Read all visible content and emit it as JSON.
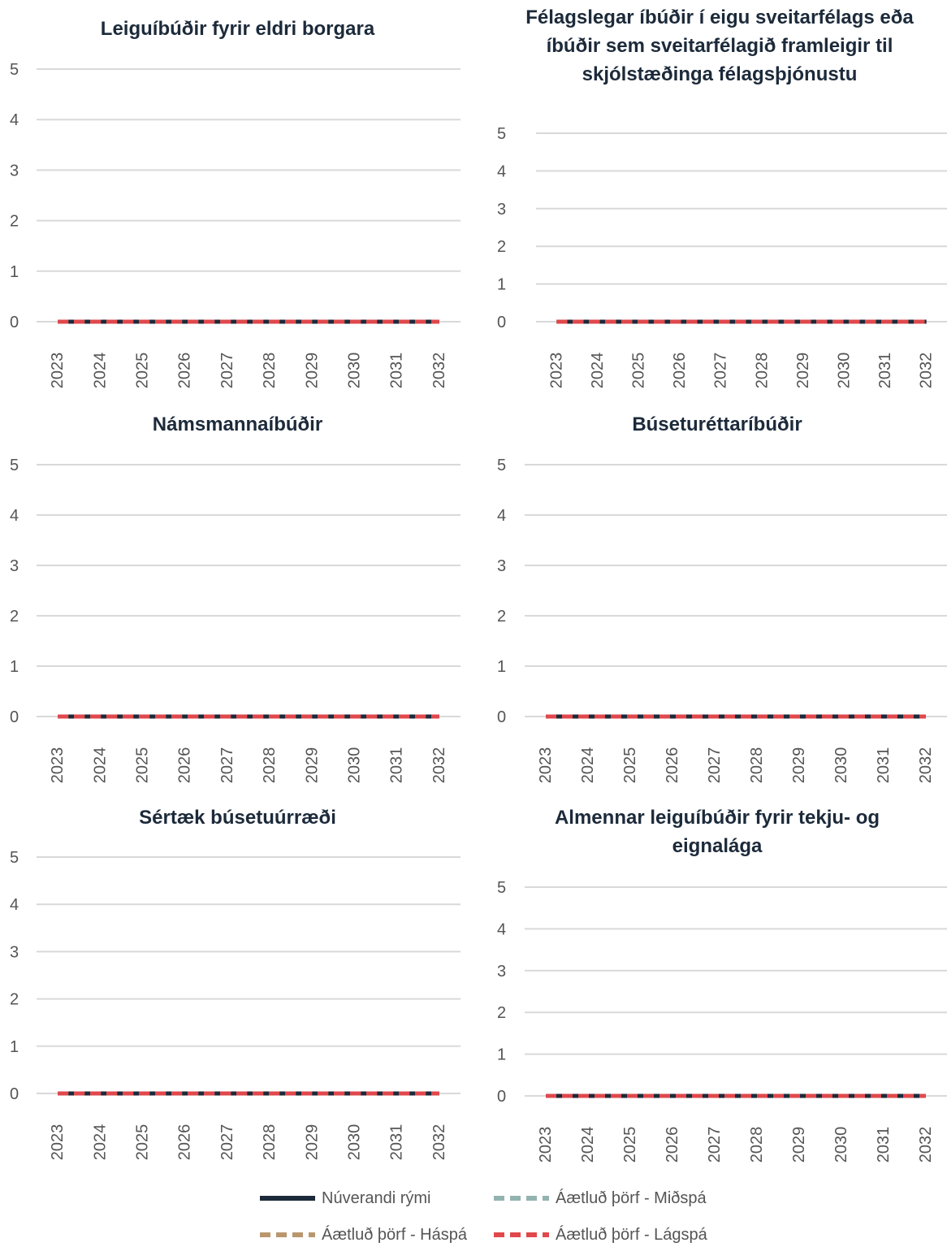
{
  "legend": [
    {
      "name": "Núverandi rými",
      "color": "#1c2a3a",
      "dash": "solid"
    },
    {
      "name": "Áætluð þörf - Miðspá",
      "color": "#93b3b1",
      "dash": "dashed"
    },
    {
      "name": "Áætluð þörf - Háspá",
      "color": "#b8976f",
      "dash": "dashed"
    },
    {
      "name": "Áætluð þörf - Lágspá",
      "color": "#e0484c",
      "dash": "dashed"
    }
  ],
  "chart_data": [
    {
      "type": "line",
      "title": "Leiguíbúðir fyrir eldri borgara",
      "x": [
        "2023",
        "2024",
        "2025",
        "2026",
        "2027",
        "2028",
        "2029",
        "2030",
        "2031",
        "2032"
      ],
      "ylim": [
        0,
        5
      ],
      "yticks": [
        "0",
        "1",
        "2",
        "3",
        "4",
        "5"
      ],
      "grid": true,
      "series": [
        {
          "name": "Núverandi rými",
          "values": [
            0,
            0,
            0,
            0,
            0,
            0,
            0,
            0,
            0,
            0
          ]
        },
        {
          "name": "Áætluð þörf - Miðspá",
          "values": [
            0,
            0,
            0,
            0,
            0,
            0,
            0,
            0,
            0,
            0
          ]
        },
        {
          "name": "Áætluð þörf - Háspá",
          "values": [
            0,
            0,
            0,
            0,
            0,
            0,
            0,
            0,
            0,
            0
          ]
        },
        {
          "name": "Áætluð þörf - Lágspá",
          "values": [
            0,
            0,
            0,
            0,
            0,
            0,
            0,
            0,
            0,
            0
          ]
        }
      ]
    },
    {
      "type": "line",
      "title": "Félagslegar íbúðir í eigu sveitarfélags eða íbúðir sem sveitarfélagið framleigir til skjólstæðinga félagsþjónustu",
      "x": [
        "2023",
        "2024",
        "2025",
        "2026",
        "2027",
        "2028",
        "2029",
        "2030",
        "2031",
        "2032"
      ],
      "ylim": [
        0,
        5
      ],
      "yticks": [
        "0",
        "1",
        "2",
        "3",
        "4",
        "5"
      ],
      "grid": true,
      "series": [
        {
          "name": "Núverandi rými",
          "values": [
            0,
            0,
            0,
            0,
            0,
            0,
            0,
            0,
            0,
            0
          ]
        },
        {
          "name": "Áætluð þörf - Miðspá",
          "values": [
            0,
            0,
            0,
            0,
            0,
            0,
            0,
            0,
            0,
            0
          ]
        },
        {
          "name": "Áætluð þörf - Háspá",
          "values": [
            0,
            0,
            0,
            0,
            0,
            0,
            0,
            0,
            0,
            0
          ]
        },
        {
          "name": "Áætluð þörf - Lágspá",
          "values": [
            0,
            0,
            0,
            0,
            0,
            0,
            0,
            0,
            0,
            0
          ]
        }
      ]
    },
    {
      "type": "line",
      "title": "Námsmannaíbúðir",
      "x": [
        "2023",
        "2024",
        "2025",
        "2026",
        "2027",
        "2028",
        "2029",
        "2030",
        "2031",
        "2032"
      ],
      "ylim": [
        0,
        5
      ],
      "yticks": [
        "0",
        "1",
        "2",
        "3",
        "4",
        "5"
      ],
      "grid": true,
      "series": [
        {
          "name": "Núverandi rými",
          "values": [
            0,
            0,
            0,
            0,
            0,
            0,
            0,
            0,
            0,
            0
          ]
        },
        {
          "name": "Áætluð þörf - Miðspá",
          "values": [
            0,
            0,
            0,
            0,
            0,
            0,
            0,
            0,
            0,
            0
          ]
        },
        {
          "name": "Áætluð þörf - Háspá",
          "values": [
            0,
            0,
            0,
            0,
            0,
            0,
            0,
            0,
            0,
            0
          ]
        },
        {
          "name": "Áætluð þörf - Lágspá",
          "values": [
            0,
            0,
            0,
            0,
            0,
            0,
            0,
            0,
            0,
            0
          ]
        }
      ]
    },
    {
      "type": "line",
      "title": "Búseturéttaríbúðir",
      "x": [
        "2023",
        "2024",
        "2025",
        "2026",
        "2027",
        "2028",
        "2029",
        "2030",
        "2031",
        "2032"
      ],
      "ylim": [
        0,
        5
      ],
      "yticks": [
        "0",
        "1",
        "2",
        "3",
        "4",
        "5"
      ],
      "grid": true,
      "series": [
        {
          "name": "Núverandi rými",
          "values": [
            0,
            0,
            0,
            0,
            0,
            0,
            0,
            0,
            0,
            0
          ]
        },
        {
          "name": "Áætluð þörf - Miðspá",
          "values": [
            0,
            0,
            0,
            0,
            0,
            0,
            0,
            0,
            0,
            0
          ]
        },
        {
          "name": "Áætluð þörf - Háspá",
          "values": [
            0,
            0,
            0,
            0,
            0,
            0,
            0,
            0,
            0,
            0
          ]
        },
        {
          "name": "Áætluð þörf - Lágspá",
          "values": [
            0,
            0,
            0,
            0,
            0,
            0,
            0,
            0,
            0,
            0
          ]
        }
      ]
    },
    {
      "type": "line",
      "title": "Sértæk búsetuúrræði",
      "x": [
        "2023",
        "2024",
        "2025",
        "2026",
        "2027",
        "2028",
        "2029",
        "2030",
        "2031",
        "2032"
      ],
      "ylim": [
        0,
        5
      ],
      "yticks": [
        "0",
        "1",
        "2",
        "3",
        "4",
        "5"
      ],
      "grid": true,
      "series": [
        {
          "name": "Núverandi rými",
          "values": [
            0,
            0,
            0,
            0,
            0,
            0,
            0,
            0,
            0,
            0
          ]
        },
        {
          "name": "Áætluð þörf - Miðspá",
          "values": [
            0,
            0,
            0,
            0,
            0,
            0,
            0,
            0,
            0,
            0
          ]
        },
        {
          "name": "Áætluð þörf - Háspá",
          "values": [
            0,
            0,
            0,
            0,
            0,
            0,
            0,
            0,
            0,
            0
          ]
        },
        {
          "name": "Áætluð þörf - Lágspá",
          "values": [
            0,
            0,
            0,
            0,
            0,
            0,
            0,
            0,
            0,
            0
          ]
        }
      ]
    },
    {
      "type": "line",
      "title": "Almennar leiguíbúðir fyrir tekju- og eignalága",
      "x": [
        "2023",
        "2024",
        "2025",
        "2026",
        "2027",
        "2028",
        "2029",
        "2030",
        "2031",
        "2032"
      ],
      "ylim": [
        0,
        5
      ],
      "yticks": [
        "0",
        "1",
        "2",
        "3",
        "4",
        "5"
      ],
      "grid": true,
      "series": [
        {
          "name": "Núverandi rými",
          "values": [
            0,
            0,
            0,
            0,
            0,
            0,
            0,
            0,
            0,
            0
          ]
        },
        {
          "name": "Áætluð þörf - Miðspá",
          "values": [
            0,
            0,
            0,
            0,
            0,
            0,
            0,
            0,
            0,
            0
          ]
        },
        {
          "name": "Áætluð þörf - Háspá",
          "values": [
            0,
            0,
            0,
            0,
            0,
            0,
            0,
            0,
            0,
            0
          ]
        },
        {
          "name": "Áætluð þörf - Lágspá",
          "values": [
            0,
            0,
            0,
            0,
            0,
            0,
            0,
            0,
            0,
            0
          ]
        }
      ]
    }
  ]
}
